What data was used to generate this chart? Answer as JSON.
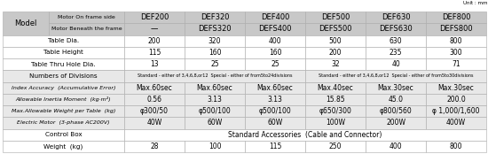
{
  "unit_label": "Unit : mm",
  "col_headers": [
    "DEF200",
    "DEF320",
    "DEF400",
    "DEF500",
    "DEF630",
    "DEF800"
  ],
  "col_headers2": [
    "—",
    "DEFS320",
    "DEFS400",
    "DEFS500",
    "DEFS630",
    "DEFS800"
  ],
  "row_labels": [
    "Table Dia.",
    "Table Height",
    "Table Thru Hole Dia.",
    "Numbers of Divisions",
    "Index Accuracy  (Accumulative Error)",
    "Allowable Inertia Moment  (kg·m²)",
    "Max.Allowable Weight per Table  (kg)",
    "Electric Motor  (3-phase AC200V)",
    "Control Box",
    "Weight  (kg)"
  ],
  "data": [
    [
      "200",
      "320",
      "400",
      "500",
      "630",
      "800"
    ],
    [
      "115",
      "160",
      "160",
      "200",
      "235",
      "300"
    ],
    [
      "13",
      "25",
      "25",
      "32",
      "40",
      "71"
    ],
    [
      "Standard - either of 3,4,6,8,or12  Special - either of from5to24divisions",
      "",
      "",
      "Standard - either of 3,4,6,8,or12  Special - either of from5to30divisions",
      "",
      ""
    ],
    [
      "Max.60sec",
      "Max.60sec",
      "Max.60sec",
      "Max.40sec",
      "Max.30sec",
      "Max.30sec"
    ],
    [
      "0.56",
      "3.13",
      "3.13",
      "15.85",
      "45.0",
      "200.0"
    ],
    [
      "φ300/50",
      "φ500/100",
      "φ500/100",
      "φ650/300",
      "φ800/560",
      "φ 1,000/1,600"
    ],
    [
      "40W",
      "60W",
      "60W",
      "100W",
      "200W",
      "400W"
    ],
    [
      "Standard Accessories  (Cable and Connector)",
      "",
      "",
      "",
      "",
      ""
    ],
    [
      "28",
      "100",
      "115",
      "250",
      "400",
      "800"
    ]
  ],
  "header_bg": "#c8c8c8",
  "row_bg_white": "#ffffff",
  "row_bg_gray": "#e8e8e8",
  "border_color": "#aaaaaa",
  "font_size": 5.5,
  "header_font_size": 6.0,
  "label_font_size": 5.2,
  "small_font_size": 4.5
}
